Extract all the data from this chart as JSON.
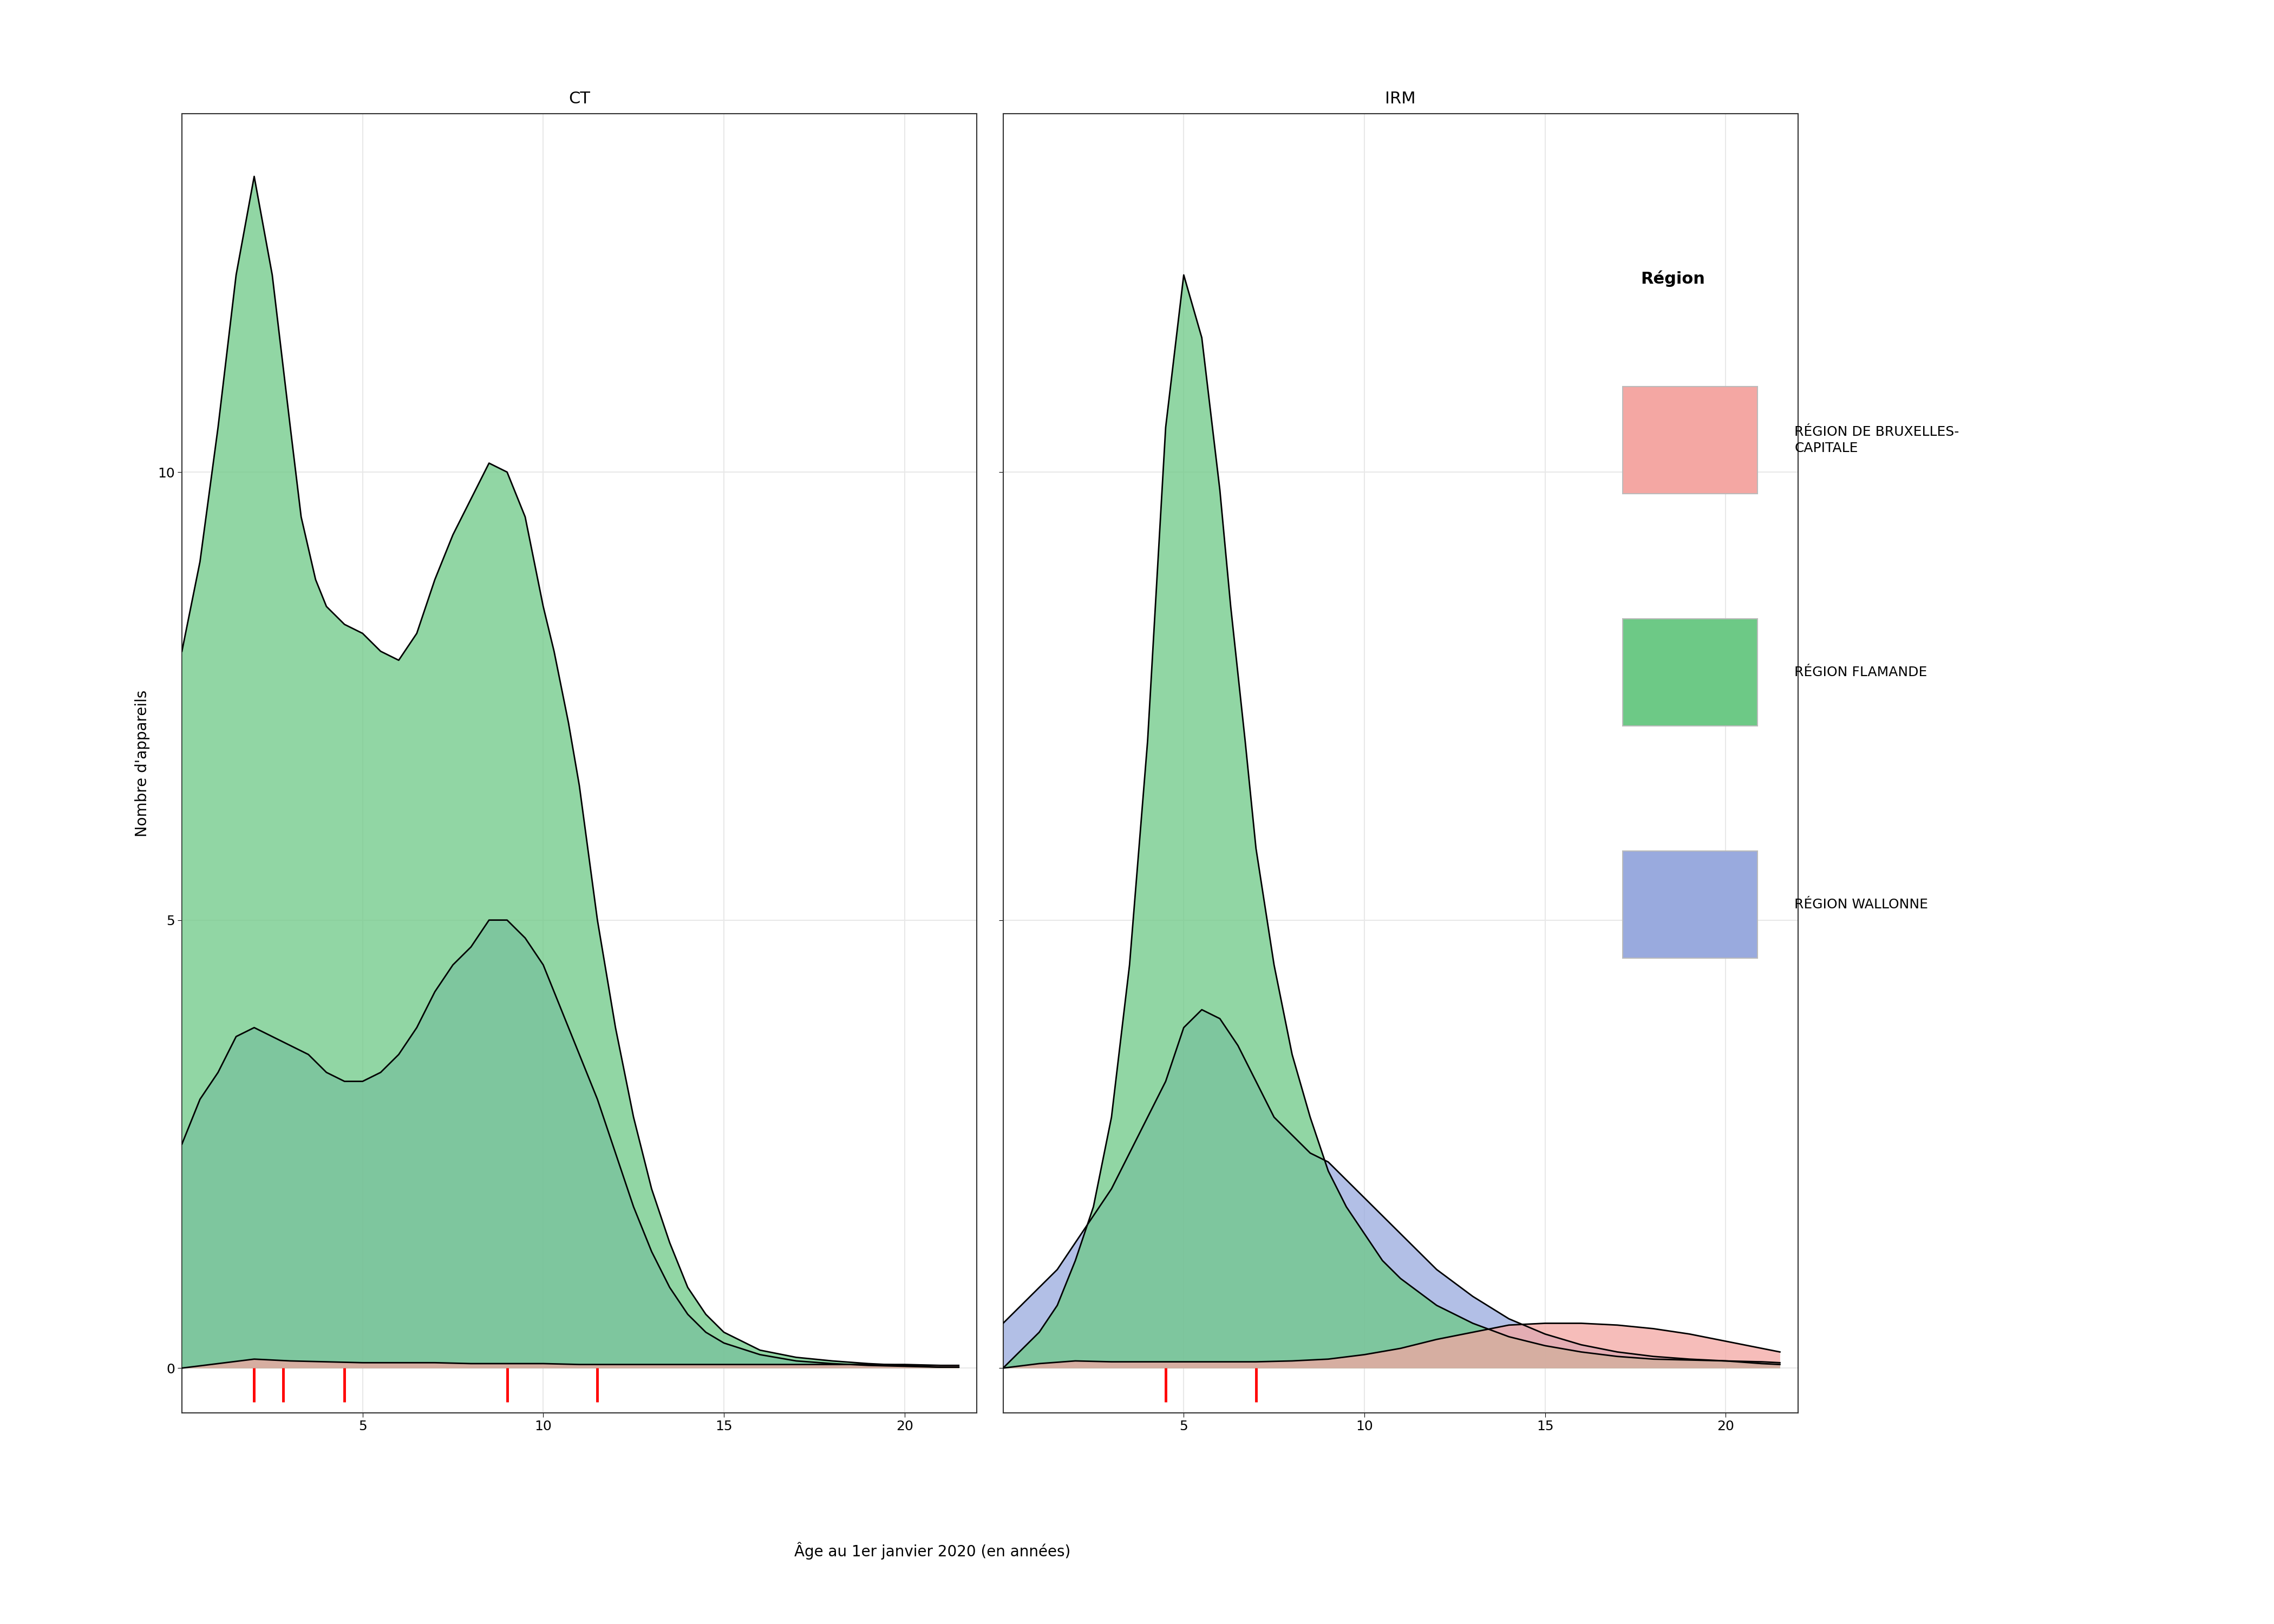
{
  "panels": [
    "CT",
    "IRM"
  ],
  "region_labels": [
    "RÉGION DE BRUXELLES-\nCAPITALE",
    "RÉGION FLAMANDE",
    "RÉGION WALLONNE"
  ],
  "region_colors": {
    "bruxelles": "#F4A7A3",
    "flamande": "#6DC986",
    "wallonne": "#99AADE"
  },
  "fill_alpha": 0.75,
  "xlim": [
    0,
    22
  ],
  "ylim": [
    -0.5,
    14
  ],
  "yticks": [
    0,
    5,
    10
  ],
  "xticks": [
    5,
    10,
    15,
    20
  ],
  "xlabel": "Âge au 1er janvier 2020 (en années)",
  "ylabel": "Nombre d'appareils",
  "background_color": "#FFFFFF",
  "grid_color": "#E8E8E8",
  "title_fontsize": 22,
  "label_fontsize": 20,
  "tick_fontsize": 18,
  "legend_title_fontsize": 22,
  "legend_fontsize": 18,
  "CT": {
    "flamande_x": [
      0.0,
      0.5,
      1.0,
      1.5,
      2.0,
      2.5,
      3.0,
      3.3,
      3.7,
      4.0,
      4.5,
      5.0,
      5.5,
      6.0,
      6.5,
      7.0,
      7.5,
      8.0,
      8.5,
      9.0,
      9.5,
      10.0,
      10.3,
      10.7,
      11.0,
      11.5,
      12.0,
      12.5,
      13.0,
      13.5,
      14.0,
      14.5,
      15.0,
      16.0,
      17.0,
      18.0,
      19.0,
      20.0,
      21.0,
      21.5
    ],
    "flamande_y": [
      8.0,
      9.0,
      10.5,
      12.2,
      13.3,
      12.2,
      10.5,
      9.5,
      8.8,
      8.5,
      8.3,
      8.2,
      8.0,
      7.9,
      8.2,
      8.8,
      9.3,
      9.7,
      10.1,
      10.0,
      9.5,
      8.5,
      8.0,
      7.2,
      6.5,
      5.0,
      3.8,
      2.8,
      2.0,
      1.4,
      0.9,
      0.6,
      0.4,
      0.2,
      0.12,
      0.08,
      0.05,
      0.03,
      0.01,
      0.01
    ],
    "wallonne_x": [
      0.0,
      0.5,
      1.0,
      1.5,
      2.0,
      2.5,
      3.0,
      3.5,
      4.0,
      4.5,
      5.0,
      5.5,
      6.0,
      6.5,
      7.0,
      7.5,
      8.0,
      8.5,
      9.0,
      9.5,
      10.0,
      10.3,
      10.7,
      11.0,
      11.5,
      12.0,
      12.5,
      13.0,
      13.5,
      14.0,
      14.5,
      15.0,
      16.0,
      17.0,
      18.0,
      19.0,
      20.0,
      21.0,
      21.5
    ],
    "wallonne_y": [
      2.5,
      3.0,
      3.3,
      3.7,
      3.8,
      3.7,
      3.6,
      3.5,
      3.3,
      3.2,
      3.2,
      3.3,
      3.5,
      3.8,
      4.2,
      4.5,
      4.7,
      5.0,
      5.0,
      4.8,
      4.5,
      4.2,
      3.8,
      3.5,
      3.0,
      2.4,
      1.8,
      1.3,
      0.9,
      0.6,
      0.4,
      0.28,
      0.15,
      0.08,
      0.05,
      0.03,
      0.02,
      0.01,
      0.01
    ],
    "bruxelles_x": [
      0.0,
      1.0,
      2.0,
      3.0,
      4.0,
      5.0,
      6.0,
      7.0,
      8.0,
      9.0,
      10.0,
      11.0,
      12.0,
      13.0,
      14.0,
      15.0,
      16.0,
      17.0,
      18.0,
      19.0,
      20.0,
      21.0,
      21.5
    ],
    "bruxelles_y": [
      0.0,
      0.05,
      0.1,
      0.08,
      0.07,
      0.06,
      0.06,
      0.06,
      0.05,
      0.05,
      0.05,
      0.04,
      0.04,
      0.04,
      0.04,
      0.04,
      0.04,
      0.04,
      0.04,
      0.04,
      0.04,
      0.03,
      0.03
    ],
    "red_ticks": [
      2.0,
      2.8,
      4.5,
      9.0,
      11.5
    ]
  },
  "IRM": {
    "flamande_x": [
      0.0,
      0.5,
      1.0,
      1.5,
      2.0,
      2.5,
      3.0,
      3.5,
      4.0,
      4.5,
      5.0,
      5.5,
      6.0,
      6.3,
      6.7,
      7.0,
      7.5,
      8.0,
      8.5,
      9.0,
      9.5,
      10.0,
      10.5,
      11.0,
      12.0,
      13.0,
      14.0,
      15.0,
      16.0,
      17.0,
      18.0,
      19.0,
      20.0,
      21.0,
      21.5
    ],
    "flamande_y": [
      0.0,
      0.2,
      0.4,
      0.7,
      1.2,
      1.8,
      2.8,
      4.5,
      7.0,
      10.5,
      12.2,
      11.5,
      9.8,
      8.5,
      7.0,
      5.8,
      4.5,
      3.5,
      2.8,
      2.2,
      1.8,
      1.5,
      1.2,
      1.0,
      0.7,
      0.5,
      0.35,
      0.25,
      0.18,
      0.13,
      0.1,
      0.09,
      0.08,
      0.07,
      0.06
    ],
    "wallonne_x": [
      0.0,
      0.5,
      1.0,
      1.5,
      2.0,
      2.5,
      3.0,
      3.5,
      4.0,
      4.5,
      5.0,
      5.5,
      6.0,
      6.5,
      7.0,
      7.5,
      8.0,
      8.5,
      9.0,
      9.5,
      10.0,
      10.5,
      11.0,
      12.0,
      13.0,
      14.0,
      15.0,
      16.0,
      17.0,
      18.0,
      19.0,
      20.0,
      21.0,
      21.5
    ],
    "wallonne_y": [
      0.5,
      0.7,
      0.9,
      1.1,
      1.4,
      1.7,
      2.0,
      2.4,
      2.8,
      3.2,
      3.8,
      4.0,
      3.9,
      3.6,
      3.2,
      2.8,
      2.6,
      2.4,
      2.3,
      2.1,
      1.9,
      1.7,
      1.5,
      1.1,
      0.8,
      0.55,
      0.38,
      0.26,
      0.18,
      0.13,
      0.1,
      0.08,
      0.05,
      0.04
    ],
    "bruxelles_x": [
      0.0,
      1.0,
      2.0,
      3.0,
      4.0,
      5.0,
      6.0,
      7.0,
      8.0,
      9.0,
      10.0,
      11.0,
      12.0,
      13.0,
      14.0,
      15.0,
      16.0,
      17.0,
      18.0,
      19.0,
      20.0,
      21.0,
      21.5
    ],
    "bruxelles_y": [
      0.0,
      0.05,
      0.08,
      0.07,
      0.07,
      0.07,
      0.07,
      0.07,
      0.08,
      0.1,
      0.15,
      0.22,
      0.32,
      0.4,
      0.48,
      0.5,
      0.5,
      0.48,
      0.44,
      0.38,
      0.3,
      0.22,
      0.18
    ],
    "red_ticks": [
      4.5,
      7.0
    ]
  }
}
